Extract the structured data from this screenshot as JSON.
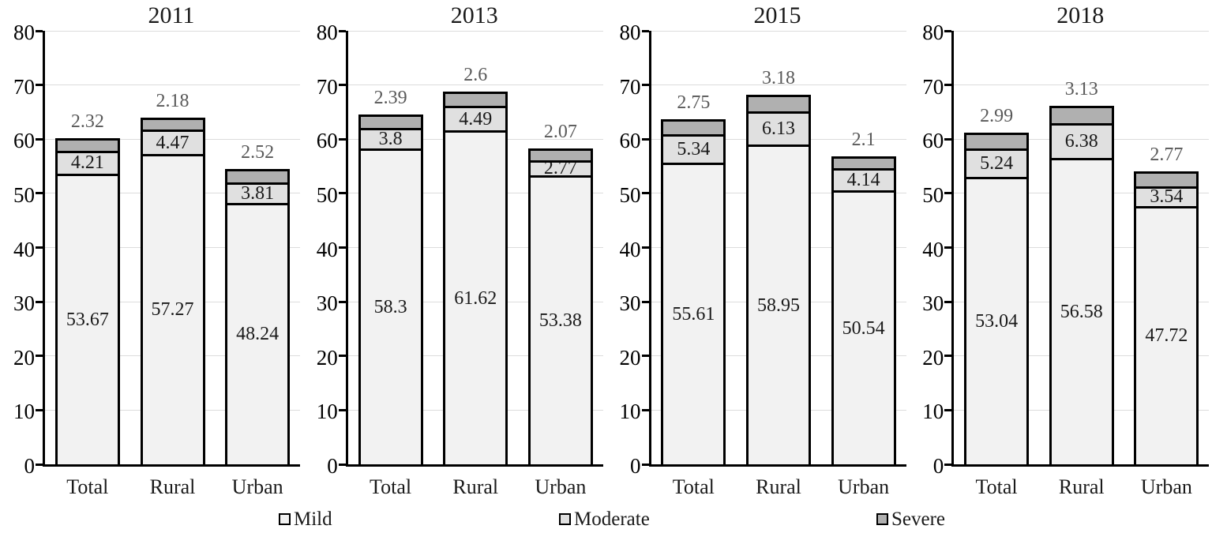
{
  "chart_data": {
    "type": "bar",
    "stacked": true,
    "categories": [
      "Total",
      "Rural",
      "Urban"
    ],
    "panels": [
      {
        "title": "2011",
        "series": [
          {
            "name": "Mild",
            "values": [
              53.67,
              57.27,
              48.24
            ]
          },
          {
            "name": "Moderate",
            "values": [
              4.21,
              4.47,
              3.81
            ]
          },
          {
            "name": "Severe",
            "values": [
              2.32,
              2.18,
              2.52
            ]
          }
        ]
      },
      {
        "title": "2013",
        "series": [
          {
            "name": "Mild",
            "values": [
              58.3,
              61.62,
              53.38
            ]
          },
          {
            "name": "Moderate",
            "values": [
              3.8,
              4.49,
              2.77
            ]
          },
          {
            "name": "Severe",
            "values": [
              2.39,
              2.6,
              2.07
            ]
          }
        ]
      },
      {
        "title": "2015",
        "series": [
          {
            "name": "Mild",
            "values": [
              55.61,
              58.95,
              50.54
            ]
          },
          {
            "name": "Moderate",
            "values": [
              5.34,
              6.13,
              4.14
            ]
          },
          {
            "name": "Severe",
            "values": [
              2.75,
              3.18,
              2.1
            ]
          }
        ]
      },
      {
        "title": "2018",
        "series": [
          {
            "name": "Mild",
            "values": [
              53.04,
              56.58,
              47.72
            ]
          },
          {
            "name": "Moderate",
            "values": [
              5.24,
              6.38,
              3.54
            ]
          },
          {
            "name": "Severe",
            "values": [
              2.99,
              3.13,
              2.77
            ]
          }
        ]
      }
    ],
    "ylim": [
      0,
      80
    ],
    "yticks": [
      0,
      10,
      20,
      30,
      40,
      50,
      60,
      70,
      80
    ],
    "grid": true,
    "legend": {
      "position": "bottom",
      "entries": [
        "Mild",
        "Moderate",
        "Severe"
      ]
    },
    "colors": {
      "mild": "#f2f2f2",
      "moderate": "#e0e0e0",
      "severe": "#b0b0b0",
      "bar_border": "#000000",
      "gridline": "#dcdcdc",
      "outside_label": "#595959",
      "inside_label": "#1a1a1a"
    }
  }
}
